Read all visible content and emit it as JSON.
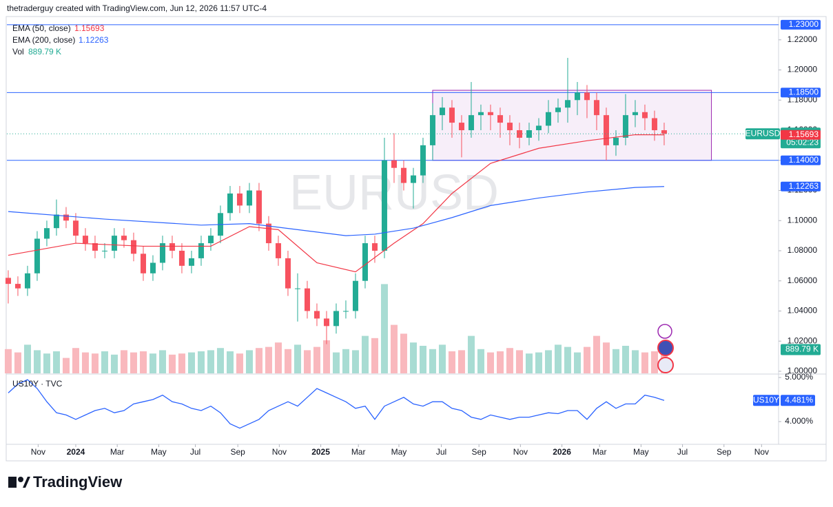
{
  "header": "thetraderguy created with TradingView.com, Jun 12, 2026 11:57 UTC-4",
  "chart_data": {
    "type": "candlestick",
    "watermark": "EURUSD",
    "open": [
      1.062,
      1.058,
      1.055,
      1.065,
      1.088,
      1.095,
      1.104,
      1.1,
      1.09,
      1.085,
      1.08,
      1.08,
      1.09,
      1.087,
      1.078,
      1.065,
      1.072,
      1.085,
      1.08,
      1.07,
      1.075,
      1.085,
      1.09,
      1.105,
      1.118,
      1.11,
      1.12,
      1.098,
      1.085,
      1.075,
      1.055,
      1.055,
      1.04,
      1.035,
      1.03,
      1.04,
      1.04,
      1.06,
      1.085,
      1.08,
      1.14,
      1.135,
      1.125,
      1.13,
      1.15,
      1.17,
      1.175,
      1.165,
      1.16,
      1.17,
      1.172,
      1.17,
      1.165,
      1.16,
      1.155,
      1.16,
      1.163,
      1.172,
      1.175,
      1.18,
      1.185,
      1.18,
      1.17,
      1.15,
      1.155,
      1.17,
      1.172,
      1.168,
      1.16
    ],
    "high": [
      1.067,
      1.063,
      1.07,
      1.093,
      1.1,
      1.114,
      1.109,
      1.105,
      1.095,
      1.09,
      1.085,
      1.095,
      1.095,
      1.092,
      1.083,
      1.077,
      1.09,
      1.09,
      1.085,
      1.08,
      1.09,
      1.095,
      1.11,
      1.123,
      1.123,
      1.125,
      1.125,
      1.103,
      1.09,
      1.08,
      1.065,
      1.06,
      1.045,
      1.04,
      1.045,
      1.047,
      1.065,
      1.09,
      1.09,
      1.155,
      1.158,
      1.14,
      1.135,
      1.155,
      1.178,
      1.182,
      1.18,
      1.17,
      1.192,
      1.177,
      1.177,
      1.175,
      1.17,
      1.165,
      1.165,
      1.168,
      1.18,
      1.181,
      1.208,
      1.192,
      1.19,
      1.185,
      1.175,
      1.16,
      1.184,
      1.18,
      1.177,
      1.173,
      1.165
    ],
    "low": [
      1.045,
      1.05,
      1.05,
      1.06,
      1.083,
      1.09,
      1.095,
      1.085,
      1.08,
      1.075,
      1.075,
      1.075,
      1.082,
      1.073,
      1.06,
      1.06,
      1.067,
      1.075,
      1.065,
      1.065,
      1.07,
      1.08,
      1.085,
      1.1,
      1.105,
      1.105,
      1.093,
      1.08,
      1.07,
      1.05,
      1.033,
      1.035,
      1.03,
      1.018,
      1.025,
      1.035,
      1.035,
      1.055,
      1.072,
      1.075,
      1.125,
      1.12,
      1.108,
      1.125,
      1.14,
      1.16,
      1.155,
      1.142,
      1.155,
      1.16,
      1.16,
      1.155,
      1.15,
      1.148,
      1.15,
      1.153,
      1.158,
      1.165,
      1.165,
      1.17,
      1.168,
      1.16,
      1.14,
      1.143,
      1.15,
      1.162,
      1.16,
      1.153,
      1.15
    ],
    "close": [
      1.058,
      1.055,
      1.065,
      1.088,
      1.095,
      1.104,
      1.1,
      1.09,
      1.085,
      1.08,
      1.08,
      1.09,
      1.087,
      1.078,
      1.065,
      1.072,
      1.085,
      1.08,
      1.07,
      1.075,
      1.085,
      1.09,
      1.105,
      1.118,
      1.11,
      1.12,
      1.098,
      1.085,
      1.075,
      1.055,
      1.055,
      1.04,
      1.035,
      1.03,
      1.04,
      1.04,
      1.06,
      1.085,
      1.08,
      1.14,
      1.135,
      1.125,
      1.13,
      1.15,
      1.17,
      1.175,
      1.165,
      1.16,
      1.17,
      1.172,
      1.17,
      1.165,
      1.16,
      1.155,
      1.16,
      1.163,
      1.172,
      1.175,
      1.18,
      1.185,
      1.18,
      1.17,
      1.15,
      1.155,
      1.17,
      1.172,
      1.168,
      1.16,
      1.15763
    ],
    "up_color": "#22ab94",
    "down_color": "#f7525f",
    "ylim": [
      0.9986,
      1.235
    ],
    "yticks": [
      {
        "value": 1.0,
        "label": "1.00000"
      },
      {
        "value": 1.02,
        "label": "1.02000"
      },
      {
        "value": 1.04,
        "label": "1.04000"
      },
      {
        "value": 1.06,
        "label": "1.06000"
      },
      {
        "value": 1.08,
        "label": "1.08000"
      },
      {
        "value": 1.1,
        "label": "1.10000"
      },
      {
        "value": 1.12,
        "label": "1.12000"
      },
      {
        "value": 1.14,
        "label": "1.14000"
      },
      {
        "value": 1.16,
        "label": "1.16000"
      },
      {
        "value": 1.18,
        "label": "1.18000"
      },
      {
        "value": 1.2,
        "label": "1.20000"
      },
      {
        "value": 1.22,
        "label": "1.22000"
      }
    ],
    "xlim": [
      -0.14,
      79.86
    ],
    "xticks": [
      {
        "value": 3.1,
        "label": "Nov"
      },
      {
        "value": 7.0,
        "label": "2024"
      },
      {
        "value": 11.3,
        "label": "Mar"
      },
      {
        "value": 15.6,
        "label": "May"
      },
      {
        "value": 19.4,
        "label": "Jul"
      },
      {
        "value": 23.8,
        "label": "Sep"
      },
      {
        "value": 28.1,
        "label": "Nov"
      },
      {
        "value": 32.4,
        "label": "2025"
      },
      {
        "value": 36.3,
        "label": "Mar"
      },
      {
        "value": 40.5,
        "label": "May"
      },
      {
        "value": 44.9,
        "label": "Jul"
      },
      {
        "value": 48.8,
        "label": "Sep"
      },
      {
        "value": 53.1,
        "label": "Nov"
      },
      {
        "value": 57.4,
        "label": "2026"
      },
      {
        "value": 61.3,
        "label": "Mar"
      },
      {
        "value": 65.6,
        "label": "May"
      },
      {
        "value": 69.9,
        "label": "Jul"
      },
      {
        "value": 74.2,
        "label": "Sep"
      },
      {
        "value": 78.1,
        "label": "Nov"
      }
    ],
    "grid": false,
    "series": [
      {
        "name": "EMA (50, close)",
        "color": "#f23645",
        "x": [
          0,
          7,
          14,
          21,
          25,
          28,
          32,
          36,
          40,
          43,
          46,
          50,
          55,
          60,
          65,
          68
        ],
        "values": [
          1.077,
          1.085,
          1.083,
          1.083,
          1.096,
          1.094,
          1.072,
          1.066,
          1.085,
          1.098,
          1.118,
          1.138,
          1.148,
          1.153,
          1.157,
          1.15693
        ]
      },
      {
        "name": "EMA (200, close)",
        "color": "#2962ff",
        "x": [
          0,
          10,
          20,
          25,
          30,
          35,
          38,
          42,
          46,
          50,
          55,
          60,
          65,
          68
        ],
        "values": [
          1.106,
          1.101,
          1.097,
          1.098,
          1.094,
          1.09,
          1.091,
          1.095,
          1.102,
          1.11,
          1.115,
          1.119,
          1.122,
          1.12263
        ]
      }
    ],
    "levels": [
      {
        "value": 1.23,
        "label": "1.23000"
      },
      {
        "value": 1.185,
        "label": "1.18500"
      },
      {
        "value": 1.14,
        "label": "1.14000"
      }
    ],
    "level_color": "#2962ff",
    "box": {
      "x": [
        44,
        72.9
      ],
      "y": [
        1.14,
        1.1865
      ],
      "color": "#9c27b0"
    },
    "last": {
      "name": "EURUSD",
      "countdown": "05:02:23"
    },
    "volume": {
      "name": "Vol",
      "up_color": "#a8dcd3",
      "down_color": "#f9b8bd",
      "ylim": [
        0,
        5000
      ],
      "last_label": "889.79 K",
      "label_color": "#22ab94",
      "values": [
        1100,
        950,
        1300,
        1050,
        900,
        1000,
        700,
        1150,
        950,
        900,
        1000,
        850,
        1050,
        950,
        1000,
        900,
        1050,
        850,
        900,
        950,
        1000,
        1050,
        1150,
        1000,
        900,
        1050,
        1150,
        1200,
        1400,
        1100,
        1300,
        1050,
        1200,
        1500,
        950,
        1100,
        1050,
        1700,
        1600,
        4050,
        2200,
        1800,
        1400,
        1250,
        1100,
        1300,
        1000,
        1050,
        1700,
        1100,
        950,
        1000,
        1150,
        1050,
        900,
        950,
        1050,
        1300,
        1200,
        950,
        1200,
        1700,
        1400,
        1100,
        1250,
        1050,
        950,
        1000,
        889.79
      ]
    }
  },
  "subplot": {
    "type": "line",
    "title": "US10Y · TVC",
    "badge": "US10Y",
    "color": "#2962ff",
    "ylim": [
      3.484,
      5.047
    ],
    "yticks": [
      {
        "value": 5,
        "label": "5.000%"
      },
      {
        "value": 4,
        "label": "4.000%"
      }
    ],
    "values": [
      4.65,
      4.85,
      4.95,
      4.75,
      4.45,
      4.2,
      4.15,
      4.05,
      4.15,
      4.25,
      4.3,
      4.2,
      4.25,
      4.4,
      4.45,
      4.5,
      4.6,
      4.45,
      4.4,
      4.3,
      4.25,
      4.35,
      4.2,
      3.95,
      3.85,
      3.95,
      4.05,
      4.25,
      4.35,
      4.45,
      4.35,
      4.55,
      4.75,
      4.65,
      4.55,
      4.45,
      4.3,
      4.35,
      4.05,
      4.35,
      4.45,
      4.55,
      4.4,
      4.35,
      4.45,
      4.45,
      4.3,
      4.25,
      4.1,
      4.05,
      4.15,
      4.1,
      4.05,
      4.1,
      4.1,
      4.15,
      4.2,
      4.18,
      4.25,
      4.25,
      4.05,
      4.3,
      4.45,
      4.3,
      4.4,
      4.4,
      4.6,
      4.55,
      4.481
    ],
    "last_label": "4.481%"
  },
  "footer": "TradingView"
}
